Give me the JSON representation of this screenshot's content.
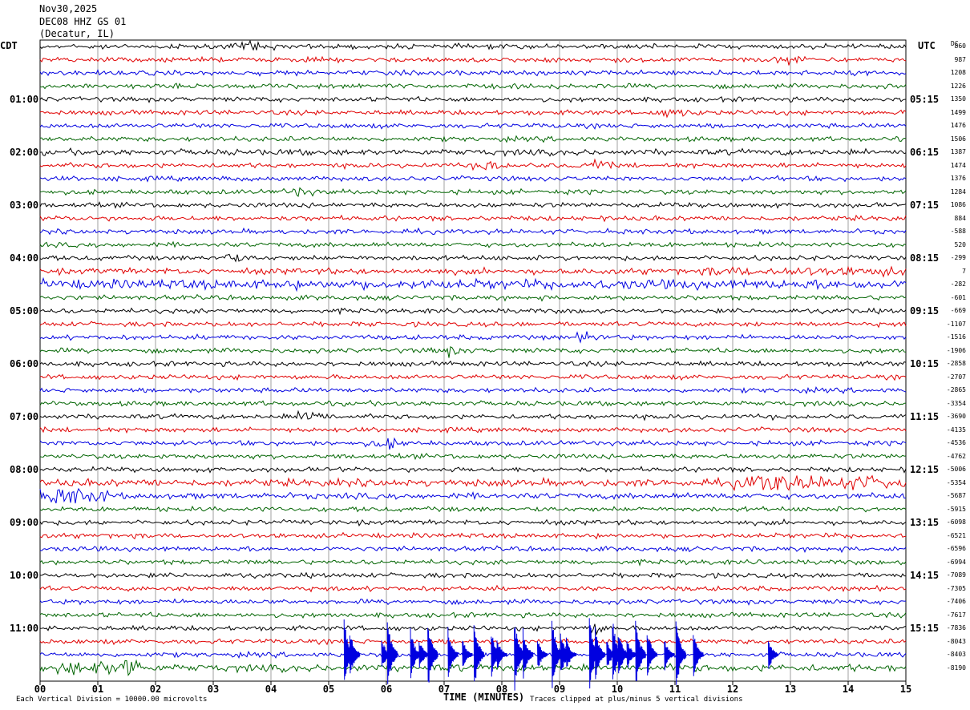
{
  "header": {
    "date": "Nov30,2025",
    "station": "DEC08 HHZ GS 01",
    "location": "(Decatur, IL)"
  },
  "left_tz": "CDT",
  "right_tz": "UTC",
  "dc_header": "DC",
  "footer": {
    "left": "Each Vertical Division = 10000.00 microvolts",
    "right": "Traces clipped at plus/minus 5 vertical divisions",
    "xlabel": "TIME (MINUTES)"
  },
  "colors": {
    "cycle": [
      "#000000",
      "#e00000",
      "#0000e0",
      "#006400"
    ],
    "grid": "#888888"
  },
  "chart_data": {
    "type": "line",
    "x_range": [
      0,
      15
    ],
    "x_ticks": [
      "00",
      "01",
      "02",
      "03",
      "04",
      "05",
      "06",
      "07",
      "08",
      "09",
      "10",
      "11",
      "12",
      "13",
      "14",
      "15"
    ],
    "row_count": 48,
    "left_labels": [
      "01:00",
      "02:00",
      "03:00",
      "04:00",
      "05:00",
      "06:00",
      "07:00",
      "08:00",
      "09:00",
      "10:00",
      "11:00"
    ],
    "right_labels": [
      "05:15",
      "06:15",
      "07:15",
      "08:15",
      "09:15",
      "10:15",
      "11:15",
      "12:15",
      "13:15",
      "14:15",
      "15:15"
    ],
    "label_row_index": [
      4,
      8,
      12,
      16,
      20,
      24,
      28,
      32,
      36,
      40,
      44
    ],
    "dc_offsets": [
      "860",
      "987",
      "1208",
      "1226",
      "1350",
      "1499",
      "1476",
      "1506",
      "1387",
      "1474",
      "1376",
      "1284",
      "1086",
      "884",
      "-588",
      "520",
      "-299",
      "7",
      "-282",
      "-601",
      "-669",
      "-1107",
      "-1516",
      "-1906",
      "-2858",
      "-2707",
      "-2865",
      "-3354",
      "-3690",
      "-4135",
      "-4536",
      "-4762",
      "-5006",
      "-5354",
      "-5687",
      "-5915",
      "-6098",
      "-6521",
      "-6596",
      "-6994",
      "-7089",
      "-7305",
      "-7406",
      "-7617",
      "-7836",
      "-8043",
      "-8403",
      "-8190"
    ],
    "noise_level": [
      2,
      2,
      2,
      2,
      2,
      2,
      2,
      2,
      2.5,
      2,
      2,
      2,
      2,
      2,
      2,
      2,
      2,
      2.5,
      4,
      2,
      2,
      2,
      2,
      2,
      2,
      2,
      2,
      2,
      2,
      2,
      2,
      2,
      2,
      3,
      2.5,
      2,
      2,
      2,
      2,
      2,
      2,
      2,
      2,
      2,
      2,
      2,
      2,
      3
    ],
    "events": [
      {
        "row": 0,
        "minute": 3.7,
        "amp": 5
      },
      {
        "row": 1,
        "minute": 13.0,
        "amp": 4
      },
      {
        "row": 5,
        "minute": 11.0,
        "amp": 5
      },
      {
        "row": 9,
        "minute": 7.8,
        "amp": 5
      },
      {
        "row": 9,
        "minute": 9.6,
        "amp": 4
      },
      {
        "row": 11,
        "minute": 4.5,
        "amp": 4
      },
      {
        "row": 16,
        "minute": 3.3,
        "amp": 4
      },
      {
        "row": 22,
        "minute": 9.5,
        "amp": 5
      },
      {
        "row": 23,
        "minute": 7.1,
        "amp": 4
      },
      {
        "row": 28,
        "minute": 4.7,
        "amp": 9
      },
      {
        "row": 30,
        "minute": 6.0,
        "amp": 5
      },
      {
        "row": 33,
        "minute": 12.8,
        "amp": 8
      },
      {
        "row": 34,
        "minute": 0.5,
        "amp": 6
      },
      {
        "row": 47,
        "minute": 1.5,
        "amp": 8
      },
      {
        "row": 44,
        "minute": 9.6,
        "amp": 5
      }
    ],
    "clipped_bursts": {
      "row": 46,
      "minutes": [
        5.35,
        5.45,
        6.0,
        6.1,
        6.5,
        6.65,
        6.8,
        7.15,
        7.4,
        7.6,
        7.9,
        8.0,
        8.3,
        8.45,
        8.7,
        8.95,
        9.1,
        9.2,
        9.6,
        9.7,
        9.9,
        10.0,
        10.1,
        10.25,
        10.4,
        10.6,
        10.9,
        11.1,
        11.4,
        12.7
      ]
    }
  }
}
